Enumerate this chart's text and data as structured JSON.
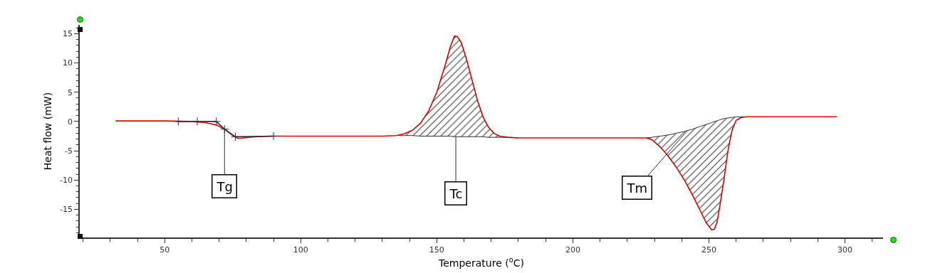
{
  "chart_data": {
    "type": "line",
    "xlabel": "Temperature ($^{o}$C)",
    "ylabel": "Heat flow (mW)",
    "xlim": [
      18.8,
      314
    ],
    "ylim": [
      -19.8,
      16.5
    ],
    "xticks": [
      50,
      100,
      150,
      200,
      250,
      300
    ],
    "yticks": [
      -15,
      -10,
      -5,
      0,
      5,
      10,
      15
    ],
    "series": [
      {
        "color": "#dd0000",
        "x": [
          32,
          50,
          60,
          65,
          69,
          72,
          75,
          77,
          79,
          83,
          90,
          110,
          130,
          135,
          138,
          141,
          144,
          147,
          150,
          153,
          155,
          156.5,
          157.5,
          159,
          161,
          163,
          165,
          167,
          169,
          171,
          173,
          176,
          180,
          200,
          210,
          220,
          227,
          229,
          232,
          235,
          238,
          241,
          244,
          247,
          249,
          251,
          252,
          253,
          254,
          255.5,
          257,
          258.5,
          260,
          262,
          264,
          280,
          297
        ],
        "values": [
          0.1,
          0.1,
          0,
          -0.2,
          -0.6,
          -1.3,
          -2.4,
          -2.9,
          -2.8,
          -2.6,
          -2.5,
          -2.5,
          -2.5,
          -2.4,
          -2.1,
          -1.5,
          -0.3,
          1.8,
          5,
          9.5,
          12.8,
          14.6,
          14.5,
          13.5,
          10.5,
          7,
          3.5,
          0.8,
          -1,
          -2,
          -2.5,
          -2.7,
          -2.8,
          -2.8,
          -2.8,
          -2.8,
          -2.8,
          -3.1,
          -4.3,
          -5.9,
          -7.8,
          -10,
          -12.6,
          -15.4,
          -17.3,
          -18.5,
          -18.4,
          -17.2,
          -14.5,
          -10,
          -5,
          -1.5,
          0.2,
          0.7,
          0.8,
          0.8,
          0.8
        ]
      },
      {
        "color": "#333333",
        "marker": "cross",
        "x": [
          55,
          62,
          69,
          72,
          76,
          90
        ],
        "values": [
          0,
          0,
          0,
          -1.3,
          -2.6,
          -2.5
        ]
      },
      {
        "color": "#333333",
        "x": [
          136,
          138,
          141,
          144,
          147,
          150,
          153,
          155,
          156.5,
          157.5,
          159,
          161,
          163,
          165,
          167,
          169,
          171,
          173,
          176,
          180
        ],
        "values": [
          -2.4,
          -2.4,
          -2.4,
          -2.5,
          -2.5,
          -2.5,
          -2.5,
          -2.5,
          -2.6,
          -2.6,
          -2.6,
          -2.6,
          -2.6,
          -2.6,
          -2.6,
          -2.7,
          -2.7,
          -2.7,
          -2.7,
          -2.8
        ],
        "lower": [
          -2.4,
          -2.4,
          -2.4,
          -2.5,
          -2.5,
          -2.5,
          -2.5,
          -2.5,
          -2.6,
          -2.6,
          -2.6,
          -2.6,
          -2.6,
          -2.6,
          -2.6,
          -2.7,
          -2.7,
          -2.7,
          -2.7,
          -2.8
        ],
        "upper": [
          -2.4,
          -2.1,
          -1.5,
          -0.3,
          1.8,
          5,
          9.5,
          12.8,
          14.6,
          14.5,
          13.5,
          10.5,
          7,
          3.5,
          0.8,
          -1,
          -2,
          -2.5,
          -2.7,
          -2.8
        ]
      },
      {
        "color": "#333333",
        "x": [
          227,
          229,
          232,
          235,
          238,
          241,
          244,
          247,
          249,
          251,
          252,
          253,
          254,
          255.5,
          257,
          258.5,
          260,
          262,
          263
        ],
        "values": [
          -2.8,
          -2.7,
          -2.5,
          -2.3,
          -2,
          -1.7,
          -1.3,
          -0.8,
          -0.5,
          -0.2,
          0,
          0.1,
          0.3,
          0.5,
          0.6,
          0.7,
          0.8,
          0.8,
          0.8
        ],
        "lower": [
          -2.8,
          -3.1,
          -4.3,
          -5.9,
          -7.8,
          -10,
          -12.6,
          -15.4,
          -17.3,
          -18.5,
          -18.4,
          -17.2,
          -14.5,
          -10,
          -5,
          -1.5,
          0.2,
          0.7,
          0.8
        ],
        "upper": [
          -2.8,
          -2.7,
          -2.5,
          -2.3,
          -2,
          -1.7,
          -1.3,
          -0.8,
          -0.5,
          -0.2,
          0,
          0.1,
          0.3,
          0.5,
          0.6,
          0.7,
          0.8,
          0.8,
          0.8
        ]
      }
    ],
    "annotations": [
      {
        "text": "Tg",
        "x": 72,
        "y": -1.3
      },
      {
        "text": "Tc",
        "x": 157,
        "y": -2.6
      },
      {
        "text": "Tm",
        "x": 242,
        "y": -1.6
      }
    ]
  }
}
